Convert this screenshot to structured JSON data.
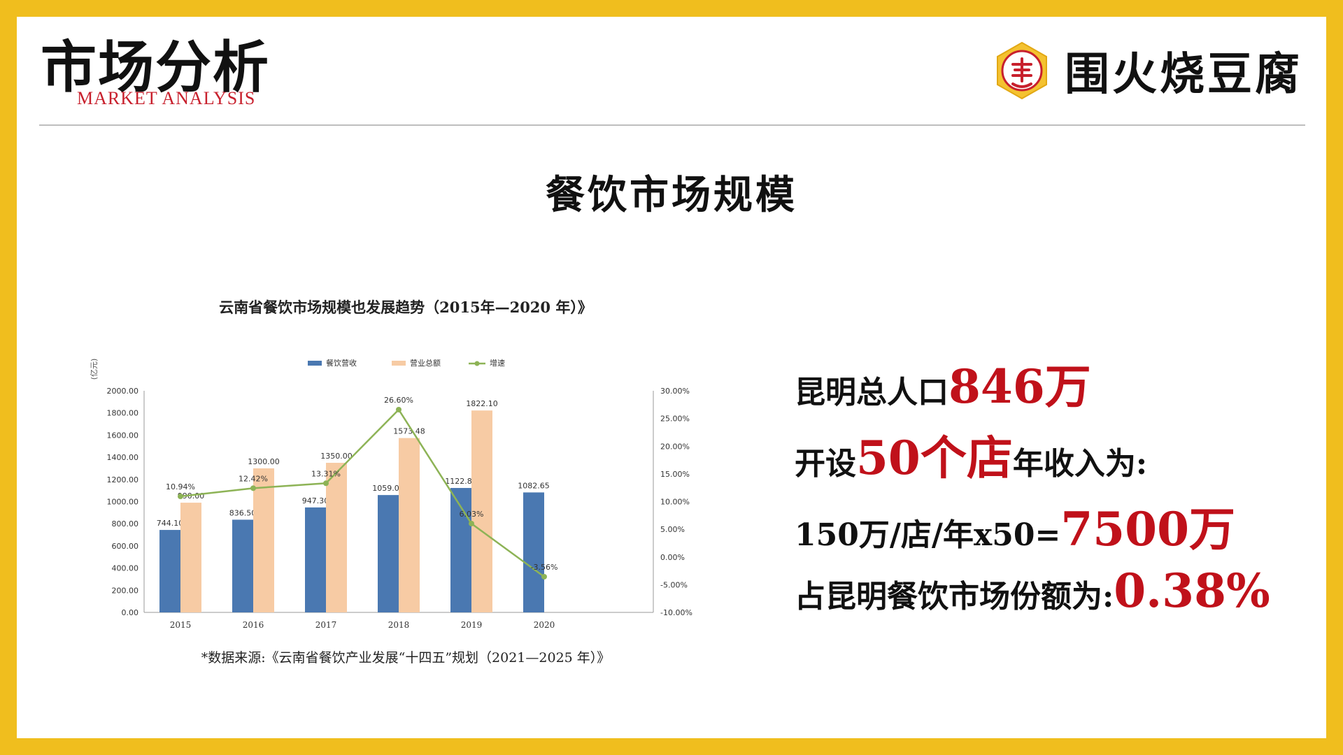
{
  "header": {
    "title": "市场分析",
    "subtitle": "MARKET ANALYSIS",
    "logo_text": "围火烧豆腐"
  },
  "section_title": "餐饮市场规模",
  "chart_title": "云南省餐饮市场规模也发展趋势（2015年—2020 年）》",
  "chart_source": "*数据来源:《云南省餐饮产业发展“十四五”规划（2021—2025 年）》",
  "stats": {
    "line1_text": "昆明总人口",
    "line1_value": "846万",
    "line2_text_a": "开设",
    "line2_value": "50个店",
    "line2_text_b": "年收入为:",
    "line3_text": "150万/店/年x50=",
    "line3_value": "7500万",
    "line4_text": "占昆明餐饮市场份额为:",
    "line4_value": "0.38%"
  },
  "colors": {
    "frame": "#F0BE1E",
    "highlight": "#C0111A",
    "bar_revenue": "#4A78B1",
    "bar_business": "#F7CBA4",
    "growth_line": "#8DB356"
  },
  "chart_data": {
    "type": "bar",
    "title": "云南省餐饮市场规模也发展趋势（2015年—2020 年）》",
    "ylabel": "(亿元)",
    "categories": [
      "2015",
      "2016",
      "2017",
      "2018",
      "2019",
      "2020"
    ],
    "ylim": [
      0,
      2000
    ],
    "yticks": [
      "0.00",
      "200.00",
      "400.00",
      "600.00",
      "800.00",
      "1000.00",
      "1200.00",
      "1400.00",
      "1600.00",
      "1800.00",
      "2000.00"
    ],
    "y2lim": [
      -10,
      30
    ],
    "y2ticks": [
      "-10.00%",
      "-5.00%",
      "0.00%",
      "5.00%",
      "10.00%",
      "15.00%",
      "20.00%",
      "25.00%",
      "30.00%"
    ],
    "legend_position": "top",
    "series": [
      {
        "name": "餐饮营收",
        "type": "bar",
        "values": [
          744.1,
          836.5,
          947.3,
          1059.01,
          1122.87,
          1082.65
        ],
        "labels": [
          "744.10",
          "836.50",
          "947.30",
          "1059.01",
          "1122.87",
          "1082.65"
        ]
      },
      {
        "name": "营业总额",
        "type": "bar",
        "values": [
          990,
          1300,
          1350,
          1573.48,
          1822.1,
          null
        ],
        "labels": [
          "990.00",
          "1300.00",
          "1350.00",
          "1573.48",
          "1822.10",
          ""
        ]
      },
      {
        "name": "增速",
        "type": "line",
        "axis": "right",
        "values": [
          10.94,
          12.42,
          13.31,
          26.6,
          6.03,
          -3.56
        ],
        "labels": [
          "10.94%",
          "12.42%",
          "13.31%",
          "26.60%",
          "6.03%",
          "-3.56%"
        ]
      }
    ]
  }
}
